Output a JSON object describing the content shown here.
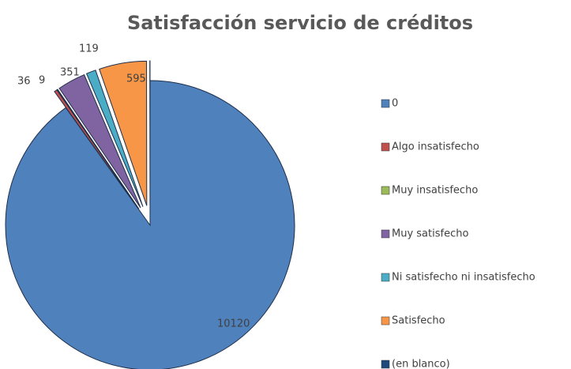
{
  "chart_data": {
    "type": "pie",
    "title": "Satisfacción servicio de créditos",
    "categories": [
      "0",
      "Algo insatisfecho",
      "Muy insatisfecho",
      "Muy satisfecho",
      "Ni satisfecho ni insatisfecho",
      "Satisfecho",
      "(en blanco)"
    ],
    "values": [
      10120,
      36,
      9,
      351,
      119,
      595,
      3
    ],
    "colors": [
      "#4f81bd",
      "#c0504d",
      "#9bbb59",
      "#8064a2",
      "#4bacc6",
      "#f79646",
      "#1f497d"
    ],
    "legend": "right"
  }
}
